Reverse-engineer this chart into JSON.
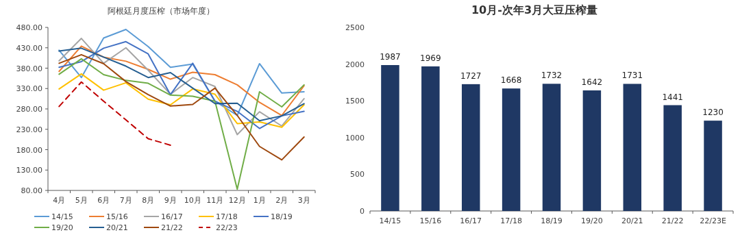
{
  "chart_data": [
    {
      "type": "line",
      "title": "阿根廷月度压榨（市场年度）",
      "categories": [
        "4月",
        "5月",
        "6月",
        "7月",
        "8月",
        "9月",
        "10月",
        "11月",
        "12月",
        "1月",
        "2月",
        "3月"
      ],
      "ylim": [
        80,
        480
      ],
      "yticks": [
        {
          "value": 80,
          "label": "80.00"
        },
        {
          "value": 130,
          "label": "130.00"
        },
        {
          "value": 180,
          "label": "180.00"
        },
        {
          "value": 230,
          "label": "230.00"
        },
        {
          "value": 280,
          "label": "280.00"
        },
        {
          "value": 330,
          "label": "330.00"
        },
        {
          "value": 380,
          "label": "380.00"
        },
        {
          "value": 430,
          "label": "430.00"
        },
        {
          "value": 480,
          "label": "480.00"
        }
      ],
      "legend": "bottom",
      "grid": false,
      "series": [
        {
          "name": "14/15",
          "color": "#5b9bd5",
          "values": [
            424,
            357,
            454,
            475,
            433,
            382,
            390,
            299,
            264,
            391,
            319,
            322
          ]
        },
        {
          "name": "15/16",
          "color": "#ed7d31",
          "values": [
            372,
            434,
            407,
            397,
            377,
            353,
            370,
            364,
            339,
            296,
            264,
            337
          ]
        },
        {
          "name": "16/17",
          "color": "#a5a5a5",
          "values": [
            398,
            453,
            392,
            430,
            375,
            316,
            357,
            335,
            217,
            273,
            238,
            305
          ]
        },
        {
          "name": "17/18",
          "color": "#ffc000",
          "values": [
            329,
            366,
            326,
            344,
            304,
            290,
            329,
            316,
            244,
            248,
            235,
            290
          ]
        },
        {
          "name": "18/19",
          "color": "#4472c4",
          "values": [
            382,
            396,
            429,
            445,
            415,
            315,
            392,
            299,
            274,
            232,
            263,
            274
          ]
        },
        {
          "name": "19/20",
          "color": "#70ad47",
          "values": [
            365,
            403,
            364,
            350,
            343,
            314,
            311,
            299,
            83,
            322,
            285,
            339
          ]
        },
        {
          "name": "20/21",
          "color": "#255e91",
          "values": [
            422,
            429,
            407,
            385,
            357,
            369,
            331,
            293,
            294,
            251,
            263,
            293
          ]
        },
        {
          "name": "21/22",
          "color": "#9e480e",
          "values": [
            392,
            413,
            391,
            347,
            315,
            287,
            291,
            331,
            264,
            188,
            155,
            211
          ]
        },
        {
          "name": "22/23",
          "color": "#c00000",
          "line_style": "dashed",
          "values": [
            286,
            346,
            299,
            253,
            207,
            191,
            null,
            null,
            null,
            null,
            null,
            null
          ]
        }
      ]
    },
    {
      "type": "bar",
      "title": "10月-次年3月大豆压榨量",
      "categories": [
        "14/15",
        "15/16",
        "16/17",
        "17/18",
        "18/19",
        "19/20",
        "20/21",
        "21/22",
        "22/23E"
      ],
      "values": [
        1987,
        1969,
        1727,
        1668,
        1732,
        1642,
        1731,
        1441,
        1230
      ],
      "color": "#1f3864",
      "data_labels": true,
      "ylim": [
        0,
        2500
      ],
      "yticks": [
        0,
        500,
        1000,
        1500,
        2000,
        2500
      ],
      "grid": false
    }
  ]
}
